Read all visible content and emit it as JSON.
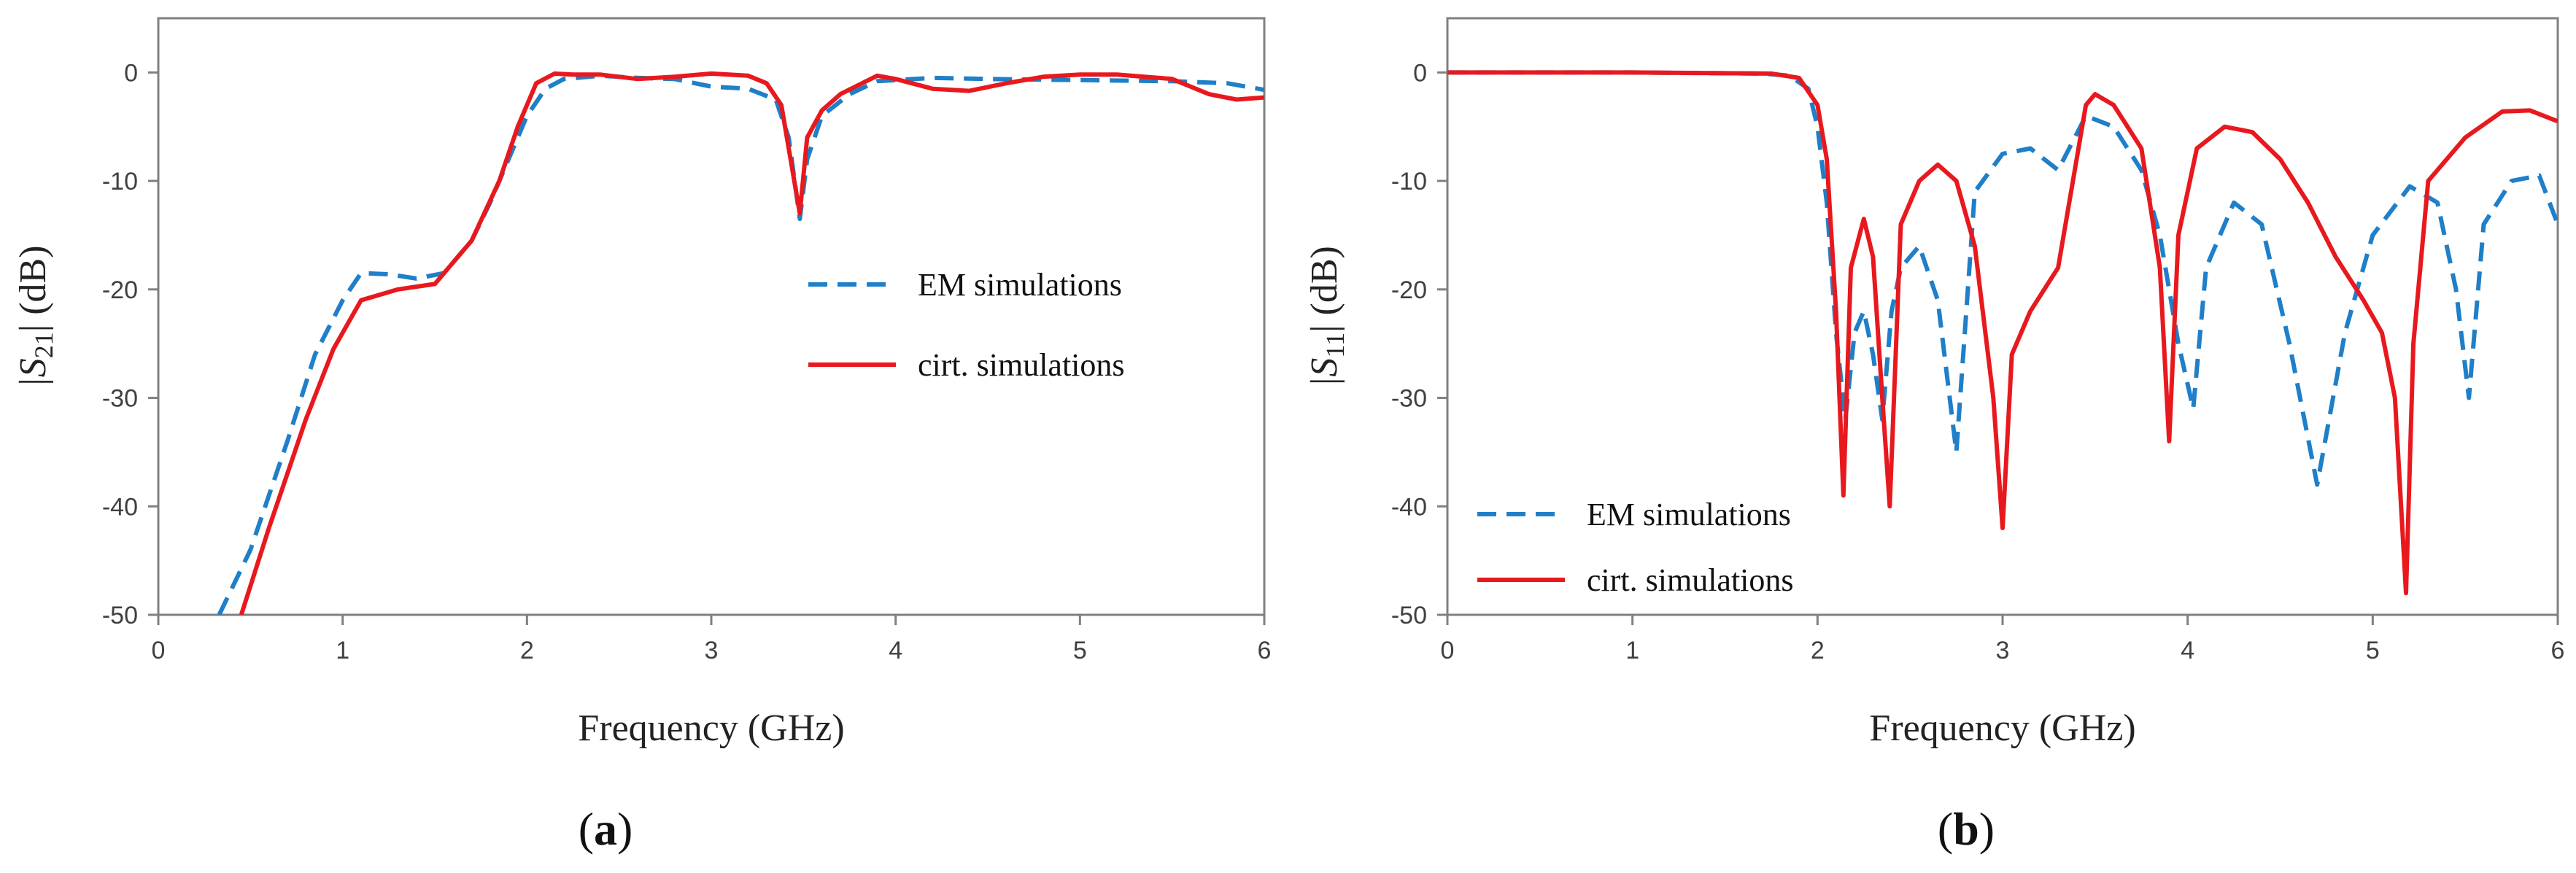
{
  "chart_data": [
    {
      "type": "line",
      "panel_label": "a",
      "xlabel": "Frequency (GHz)",
      "ylabel_prefix": "|S",
      "ylabel_sub": "21",
      "ylabel_suffix": "| (dB)",
      "xlim": [
        0,
        6
      ],
      "ylim": [
        -50,
        5
      ],
      "xticks": [
        0,
        1,
        2,
        3,
        4,
        5,
        6
      ],
      "yticks": [
        0,
        -10,
        -20,
        -30,
        -40,
        -50
      ],
      "legend_position": "center-right",
      "series": [
        {
          "name": "EM simulations",
          "style": "dashed",
          "color": "#1f7fc8",
          "x": [
            0.33,
            0.5,
            0.7,
            0.85,
            1.0,
            1.1,
            1.25,
            1.4,
            1.55,
            1.7,
            1.8,
            1.9,
            2.0,
            2.1,
            2.2,
            2.4,
            2.6,
            2.8,
            3.0,
            3.2,
            3.35,
            3.42,
            3.48,
            3.52,
            3.6,
            3.75,
            3.9,
            4.2,
            4.5,
            5.0,
            5.5,
            5.8,
            6.0
          ],
          "y": [
            -50,
            -44,
            -34,
            -26,
            -21,
            -18.5,
            -18.6,
            -19.0,
            -18.5,
            -15.5,
            -12,
            -8,
            -4,
            -1.5,
            -0.6,
            -0.3,
            -0.5,
            -0.6,
            -1.3,
            -1.5,
            -2.5,
            -6,
            -13.5,
            -8,
            -4,
            -2,
            -0.8,
            -0.5,
            -0.6,
            -0.7,
            -0.8,
            -1.0,
            -1.6
          ]
        },
        {
          "name": "cirt. simulations",
          "style": "solid",
          "color": "#e8191e",
          "x": [
            0.45,
            0.6,
            0.8,
            0.95,
            1.1,
            1.3,
            1.5,
            1.7,
            1.85,
            1.95,
            2.05,
            2.15,
            2.25,
            2.4,
            2.6,
            2.8,
            3.0,
            3.2,
            3.3,
            3.38,
            3.44,
            3.48,
            3.52,
            3.6,
            3.7,
            3.9,
            4.0,
            4.2,
            4.4,
            4.6,
            4.8,
            5.0,
            5.2,
            5.5,
            5.7,
            5.85,
            6.0
          ],
          "y": [
            -50,
            -42,
            -32,
            -25.5,
            -21,
            -20,
            -19.5,
            -15.5,
            -10,
            -5,
            -1,
            -0.1,
            -0.2,
            -0.2,
            -0.6,
            -0.4,
            -0.1,
            -0.3,
            -1.0,
            -3,
            -9,
            -13,
            -6,
            -3.5,
            -2,
            -0.3,
            -0.6,
            -1.5,
            -1.7,
            -1.0,
            -0.4,
            -0.2,
            -0.2,
            -0.6,
            -2.0,
            -2.5,
            -2.3
          ]
        }
      ]
    },
    {
      "type": "line",
      "panel_label": "b",
      "xlabel": "Frequency (GHz)",
      "ylabel_prefix": "|S",
      "ylabel_sub": "11",
      "ylabel_suffix": "| (dB)",
      "xlim": [
        0,
        6
      ],
      "ylim": [
        -50,
        5
      ],
      "xticks": [
        0,
        1,
        2,
        3,
        4,
        5,
        6
      ],
      "yticks": [
        0,
        -10,
        -20,
        -30,
        -40,
        -50
      ],
      "legend_position": "bottom-left",
      "series": [
        {
          "name": "EM simulations",
          "style": "dashed",
          "color": "#1f7fc8",
          "x": [
            0.0,
            1.0,
            1.7,
            1.85,
            1.95,
            2.0,
            2.05,
            2.1,
            2.15,
            2.2,
            2.25,
            2.3,
            2.35,
            2.4,
            2.45,
            2.55,
            2.65,
            2.75,
            2.85,
            3.0,
            3.15,
            3.3,
            3.45,
            3.6,
            3.75,
            3.85,
            3.95,
            4.03,
            4.1,
            4.25,
            4.4,
            4.55,
            4.7,
            4.85,
            5.0,
            5.2,
            5.35,
            5.45,
            5.52,
            5.6,
            5.75,
            5.9,
            6.0
          ],
          "y": [
            0,
            0,
            -0.1,
            -0.3,
            -1.5,
            -5,
            -12,
            -24,
            -32,
            -24,
            -22,
            -26,
            -32,
            -22,
            -18,
            -16,
            -21,
            -35,
            -11,
            -7.5,
            -7,
            -9,
            -4,
            -5,
            -9,
            -15,
            -25,
            -31,
            -18,
            -12,
            -14,
            -25,
            -38,
            -24,
            -15,
            -10.5,
            -12,
            -20,
            -30,
            -14,
            -10,
            -9.5,
            -14
          ]
        },
        {
          "name": "cirt. simulations",
          "style": "solid",
          "color": "#e8191e",
          "x": [
            0.0,
            1.0,
            1.75,
            1.9,
            2.0,
            2.05,
            2.1,
            2.14,
            2.18,
            2.25,
            2.3,
            2.35,
            2.39,
            2.45,
            2.55,
            2.65,
            2.75,
            2.85,
            2.95,
            3.0,
            3.05,
            3.15,
            3.3,
            3.45,
            3.5,
            3.6,
            3.75,
            3.85,
            3.9,
            3.95,
            4.05,
            4.2,
            4.35,
            4.5,
            4.65,
            4.8,
            4.95,
            5.05,
            5.12,
            5.18,
            5.22,
            5.3,
            5.5,
            5.7,
            5.85,
            6.0
          ],
          "y": [
            0,
            0,
            -0.1,
            -0.5,
            -3,
            -8,
            -22,
            -39,
            -18,
            -13.5,
            -17,
            -30,
            -40,
            -14,
            -10,
            -8.5,
            -10,
            -16,
            -30,
            -42,
            -26,
            -22,
            -18,
            -3,
            -2,
            -3,
            -7,
            -18,
            -34,
            -15,
            -7,
            -5,
            -5.5,
            -8,
            -12,
            -17,
            -21,
            -24,
            -30,
            -48,
            -25,
            -10,
            -6,
            -3.6,
            -3.5,
            -4.5
          ]
        }
      ]
    }
  ]
}
